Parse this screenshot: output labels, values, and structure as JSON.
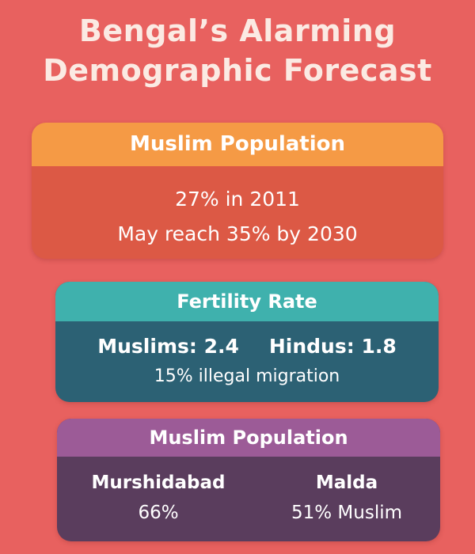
{
  "title": {
    "line1": "Bengal’s Alarming",
    "line2": "Demographic Forecast"
  },
  "cards": {
    "population": {
      "heading": "Muslim Population",
      "line1": "27% in 2011",
      "line2": "May reach 35% by 2030",
      "colors": {
        "header": "#f59a45",
        "body": "#dc5945"
      }
    },
    "fertility": {
      "heading": "Fertility Rate",
      "muslims": "Muslims: 2.4",
      "hindus": "Hindus: 1.8",
      "migration": "15% illegal migration",
      "colors": {
        "header": "#3fb1ad",
        "body": "#2c6174"
      }
    },
    "districts": {
      "heading": "Muslim Population",
      "left": {
        "name": "Murshidabad",
        "value": "66%"
      },
      "right": {
        "name": "Malda",
        "value": "51% Muslim"
      },
      "colors": {
        "header": "#9c5b97",
        "body": "#5a3d5d"
      }
    }
  },
  "colors": {
    "background": "#e8615f",
    "title": "#fbeae3"
  }
}
